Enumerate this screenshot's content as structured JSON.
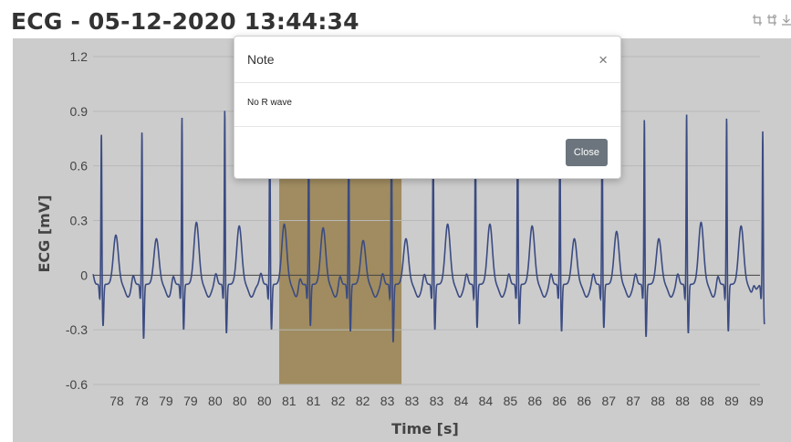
{
  "header": {
    "title": "ECG - 05-12-2020 13:44:34"
  },
  "toolbar": {
    "icons": [
      "crop-icon",
      "crop-reset-icon",
      "download-icon"
    ]
  },
  "modal": {
    "title": "Note",
    "close_symbol": "×",
    "body_text": "No R wave",
    "close_label": "Close"
  },
  "colors": {
    "series": "#4a5ea3",
    "highlight": "#c8b078",
    "grid": "#e6e6e6",
    "axis_text": "#555555"
  },
  "chart_data": {
    "type": "line",
    "title": "ECG - 05-12-2020 13:44:34",
    "xlabel": "Time [s]",
    "ylabel": "ECG [mV]",
    "ylim": [
      -0.6,
      1.2
    ],
    "yticks": [
      "1.2",
      "0.9",
      "0.6",
      "0.3",
      "0",
      "-0.3",
      "-0.6"
    ],
    "xticks": [
      "78",
      "78",
      "79",
      "79",
      "80",
      "80",
      "80",
      "81",
      "81",
      "82",
      "82",
      "83",
      "83",
      "83",
      "84",
      "84",
      "85",
      "86",
      "86",
      "86",
      "87",
      "87",
      "88",
      "88",
      "88",
      "89",
      "89"
    ],
    "xlim": [
      77.5,
      89.5
    ],
    "grid": true,
    "highlight_region": {
      "x_start": 80.85,
      "x_end": 83.05
    },
    "series": [
      {
        "r_peaks": [
          77.65,
          78.38,
          79.1,
          79.87,
          80.68,
          81.38,
          82.1,
          82.87,
          83.62,
          84.38,
          85.14,
          85.9,
          86.66,
          87.42,
          88.18,
          88.9,
          89.55
        ],
        "r_amplitudes": [
          0.84,
          0.85,
          0.93,
          0.97,
          0.9,
          0.92,
          0.94,
          0.96,
          0.87,
          0.9,
          0.95,
          0.9,
          0.9,
          0.92,
          0.95,
          0.93,
          0.85
        ],
        "s_depths": [
          -0.28,
          -0.35,
          -0.3,
          -0.32,
          -0.3,
          -0.28,
          -0.31,
          -0.37,
          -0.3,
          -0.29,
          -0.27,
          -0.31,
          -0.29,
          -0.34,
          -0.32,
          -0.31,
          -0.27
        ],
        "t_amplitudes": [
          0.24,
          0.22,
          0.31,
          0.29,
          0.3,
          0.28,
          0.21,
          0.22,
          0.3,
          0.3,
          0.29,
          0.22,
          0.26,
          0.22,
          0.31,
          0.29,
          0.31
        ]
      }
    ]
  }
}
